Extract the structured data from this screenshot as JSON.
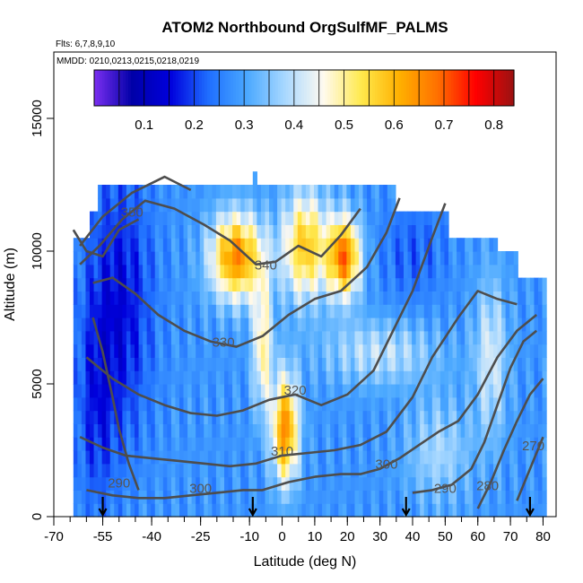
{
  "chart_data": {
    "type": "heatmap",
    "title": "ATOM2 Northbound OrgSulfMF_PALMS",
    "subtitle_flights": "Flts: 6,7,8,9,10",
    "subtitle_dates": "MMDD: 0210,0213,0215,0218,0219",
    "xlabel": "Latitude (deg N)",
    "ylabel": "Altitude (m)",
    "xlim": [
      -70,
      84
    ],
    "ylim": [
      0,
      17500
    ],
    "xticks_major": [
      -70,
      -55,
      -40,
      -25,
      -10,
      0,
      10,
      20,
      30,
      40,
      50,
      60,
      70,
      80
    ],
    "xticks_labels": [
      "-70",
      "-55",
      "-40",
      "-25",
      "-10",
      "0",
      "10",
      "20",
      "30",
      "40",
      "50",
      "60",
      "70",
      "80"
    ],
    "yticks": [
      0,
      5000,
      10000,
      15000
    ],
    "ytick_labels": [
      "0",
      "5000",
      "10000",
      "15000"
    ],
    "colorbar": {
      "range": [
        0.0,
        0.84
      ],
      "ticks": [
        0.1,
        0.2,
        0.3,
        0.4,
        0.5,
        0.6,
        0.7,
        0.8
      ],
      "tick_labels": [
        "0.1",
        "0.2",
        "0.3",
        "0.4",
        "0.5",
        "0.6",
        "0.7",
        "0.8"
      ],
      "colors": [
        "#7b2ff0",
        "#0000a8",
        "#0000dd",
        "#1f6fff",
        "#4aa8ff",
        "#a8d8ff",
        "#fffaf0",
        "#ffe94d",
        "#ffb000",
        "#ff7000",
        "#ff0000",
        "#9b1212"
      ]
    },
    "contour_labels": [
      {
        "text": "350",
        "x": -46,
        "y": 11300
      },
      {
        "text": "340",
        "x": -5,
        "y": 9300
      },
      {
        "text": "330",
        "x": -18,
        "y": 6400
      },
      {
        "text": "320",
        "x": 4,
        "y": 4600
      },
      {
        "text": "310",
        "x": 0,
        "y": 2300
      },
      {
        "text": "300",
        "x": -25,
        "y": 900
      },
      {
        "text": "300",
        "x": 32,
        "y": 1800
      },
      {
        "text": "290",
        "x": -50,
        "y": 1100
      },
      {
        "text": "290",
        "x": 50,
        "y": 900
      },
      {
        "text": "280",
        "x": 63,
        "y": 1000
      },
      {
        "text": "270",
        "x": 77,
        "y": 2500
      }
    ],
    "arrows_latitude": [
      -55,
      -9,
      38,
      76
    ],
    "grid": false,
    "legend": "colorbar top"
  }
}
